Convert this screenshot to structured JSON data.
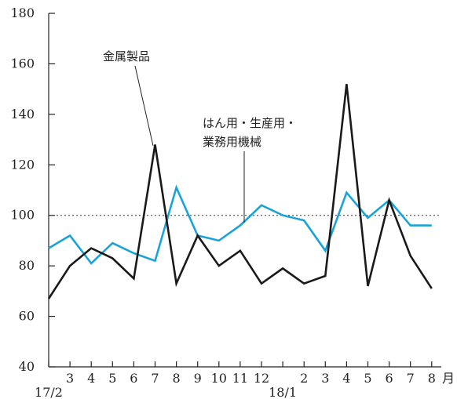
{
  "chart_data": {
    "type": "line",
    "title": "",
    "xlabel": "",
    "ylabel": "",
    "ylim": [
      40,
      180
    ],
    "yticks": [
      40,
      60,
      80,
      100,
      120,
      140,
      160,
      180
    ],
    "ytick_labels": [
      "40",
      "60",
      "80",
      "100",
      "120",
      "140",
      "160",
      "180"
    ],
    "grid": false,
    "reference_line": {
      "y": 100,
      "style": "dotted"
    },
    "x": [
      "17/2",
      "3",
      "4",
      "5",
      "6",
      "7",
      "8",
      "9",
      "10",
      "11",
      "12",
      "18/1",
      "2",
      "3",
      "4",
      "5",
      "6",
      "7",
      "8"
    ],
    "xtick_labels": [
      {
        "month": "",
        "year": "17/2"
      },
      {
        "month": "3",
        "year": ""
      },
      {
        "month": "4",
        "year": ""
      },
      {
        "month": "5",
        "year": ""
      },
      {
        "month": "6",
        "year": ""
      },
      {
        "month": "7",
        "year": ""
      },
      {
        "month": "8",
        "year": ""
      },
      {
        "month": "9",
        "year": ""
      },
      {
        "month": "10",
        "year": ""
      },
      {
        "month": "11",
        "year": ""
      },
      {
        "month": "12",
        "year": ""
      },
      {
        "month": "",
        "year": "18/1"
      },
      {
        "month": "2",
        "year": ""
      },
      {
        "month": "3",
        "year": ""
      },
      {
        "month": "4",
        "year": ""
      },
      {
        "month": "5",
        "year": ""
      },
      {
        "month": "6",
        "year": ""
      },
      {
        "month": "7",
        "year": ""
      },
      {
        "month": "8",
        "year": ""
      }
    ],
    "x_unit": "月",
    "series": [
      {
        "name": "金属製品",
        "color": "#1a1a1a",
        "values": [
          67,
          80,
          87,
          83,
          75,
          128,
          73,
          92,
          80,
          86,
          73,
          79,
          73,
          76,
          152,
          72,
          106,
          84,
          71
        ]
      },
      {
        "name": "はん用・生産用・業務用機械",
        "name_lines": [
          "はん用・生産用・",
          "業務用機械"
        ],
        "color": "#1aa3d8",
        "values": [
          87,
          92,
          81,
          89,
          85,
          82,
          111,
          92,
          90,
          96,
          104,
          100,
          98,
          86,
          109,
          99,
          106,
          96,
          96
        ]
      }
    ]
  }
}
